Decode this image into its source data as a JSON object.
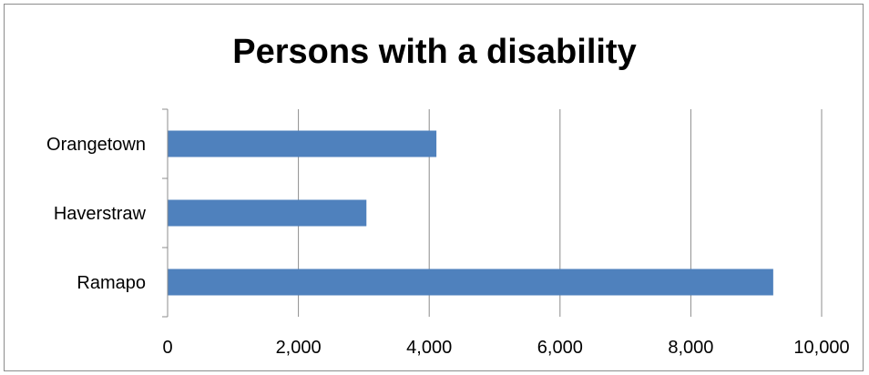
{
  "chart_data": {
    "type": "bar",
    "orientation": "horizontal",
    "title": "Persons with a disability",
    "categories": [
      "Ramapo",
      "Haverstraw",
      "Orangetown"
    ],
    "values": [
      9260,
      3040,
      4110
    ],
    "xlim": [
      0,
      10000
    ],
    "xticks": [
      0,
      2000,
      4000,
      6000,
      8000,
      10000
    ],
    "xtick_labels": [
      "0",
      "2,000",
      "4,000",
      "6,000",
      "8,000",
      "10,000"
    ],
    "xlabel": "",
    "ylabel": "",
    "grid": "vertical",
    "legend": "none",
    "bar_color": "#4f81bd"
  }
}
